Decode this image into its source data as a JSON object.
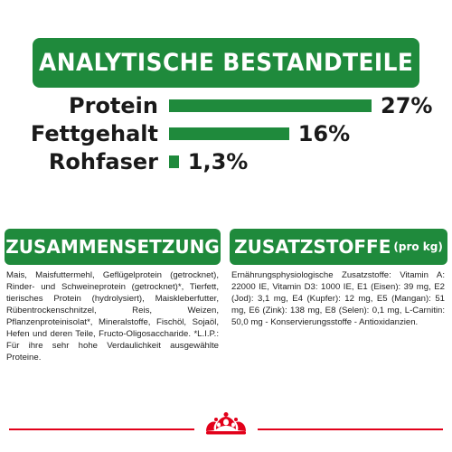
{
  "header": {
    "title": "ANALYTISCHE BESTANDTEILE"
  },
  "nutrients": [
    {
      "label": "Protein",
      "value_text": "27%",
      "value": 27
    },
    {
      "label": "Fettgehalt",
      "value_text": "16%",
      "value": 16
    },
    {
      "label": "Rohfaser",
      "value_text": "1,3%",
      "value": 1.3
    }
  ],
  "composition": {
    "title": "ZUSAMMENSETZUNG",
    "text": "Mais, Maisfuttermehl, Geflügelprotein (getrocknet), Rinder- und Schweineprotein (getrocknet)*, Tierfett, tierisches Protein (hydrolysiert), Maiskleberfutter, Rübentrockenschnitzel, Reis, Weizen, Pflanzenproteinisolat*, Mineralstoffe, Fischöl, Sojaöl, Hefen und deren Teile, Fructo-Oligosaccharide. *L.I.P.: Für ihre sehr hohe Verdaulichkeit ausgewählte Proteine."
  },
  "additives": {
    "title": "ZUSATZSTOFFE",
    "title_suffix": "(pro kg)",
    "text": "Ernährungsphysiologische Zusatzstoffe: Vitamin A: 22000 IE, Vitamin D3: 1000 IE, E1 (Eisen): 39 mg, E2 (Jod): 3,1 mg, E4 (Kupfer): 12 mg, E5 (Mangan): 51 mg, E6 (Zink): 138 mg, E8 (Selen): 0,1 mg, L-Carnitin: 50,0 mg - Konservierungsstoffe - Antioxidanzien."
  },
  "colors": {
    "brand_green": "#1f8a3c",
    "brand_red": "#e2001a"
  },
  "footer": {
    "icon": "royal-canin-crown-icon"
  }
}
